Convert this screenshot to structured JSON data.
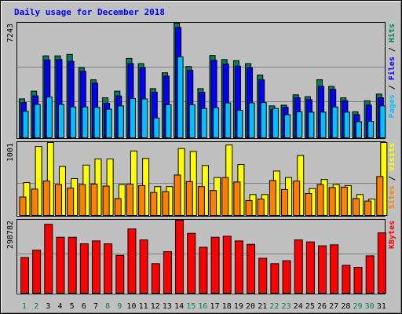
{
  "chart_data": {
    "type": "bar",
    "title": "Daily usage for December 2018",
    "colors": {
      "background": "#c0c0c0",
      "panel": "#c0c0c0",
      "grid": "#808080",
      "hits": "#00805c",
      "files": "#0000ff",
      "pages": "#00c0ff",
      "visits": "#ffff00",
      "sites": "#ff8000",
      "kbytes": "#ff0000",
      "title": "#0000ff",
      "weekday_label": "#0000ff",
      "weekend_label": "#00805c"
    },
    "days": [
      "1",
      "2",
      "3",
      "4",
      "5",
      "6",
      "7",
      "8",
      "9",
      "10",
      "11",
      "12",
      "13",
      "14",
      "15",
      "16",
      "17",
      "18",
      "19",
      "20",
      "21",
      "22",
      "23",
      "24",
      "25",
      "26",
      "27",
      "28",
      "29",
      "30",
      "31"
    ],
    "weekend_days": [
      "1",
      "2",
      "8",
      "9",
      "15",
      "16",
      "22",
      "23",
      "29",
      "30"
    ],
    "panels": [
      {
        "id": "hits-files-pages",
        "ymax_label": "7243",
        "ymax": 7243,
        "legend": [
          {
            "text": "Pages",
            "color": "#00c0ff"
          },
          {
            "text": " / ",
            "color": "#000000"
          },
          {
            "text": "Files",
            "color": "#0000ff"
          },
          {
            "text": " / ",
            "color": "#000000"
          },
          {
            "text": "Hits",
            "color": "#00805c"
          }
        ],
        "series": [
          {
            "name": "Hits",
            "values": [
              2458,
              2947,
              5177,
              5177,
              5270,
              4432,
              3664,
              2528,
              2947,
              5015,
              4688,
              3105,
              4108,
              7243,
              4502,
              3105,
              5201,
              4944,
              4874,
              4688,
              3967,
              2016,
              2062,
              2715,
              2599,
              3664,
              3245,
              2528,
              1644,
              2342,
              2761
            ]
          },
          {
            "name": "Files",
            "values": [
              2225,
              2644,
              4921,
              4944,
              4828,
              4200,
              3455,
              2179,
              2644,
              4688,
              4432,
              2877,
              3897,
              6964,
              4269,
              2877,
              4897,
              4665,
              4525,
              4432,
              3664,
              1784,
              1923,
              2528,
              2412,
              3245,
              3059,
              2342,
              1459,
              2063,
              2528
            ]
          },
          {
            "name": "Pages",
            "values": [
              1669,
              2109,
              2574,
              2109,
              1946,
              1946,
              1923,
              1806,
              2016,
              2481,
              2458,
              1249,
              2087,
              5108,
              2087,
              1853,
              1900,
              2202,
              1737,
              2202,
              2225,
              1853,
              1459,
              1644,
              1621,
              1621,
              1946,
              1621,
              1018,
              1041,
              2016
            ]
          }
        ]
      },
      {
        "id": "visits-sites",
        "ymax_label": "1001",
        "ymax": 1001,
        "legend": [
          {
            "text": "Sites",
            "color": "#ff8000"
          },
          {
            "text": " / ",
            "color": "#000000"
          },
          {
            "text": "Visits",
            "color": "#ffff00"
          }
        ],
        "series": [
          {
            "name": "Visits",
            "values": [
              451,
              946,
              1001,
              672,
              506,
              691,
              775,
              775,
              424,
              884,
              782,
              396,
              396,
              918,
              877,
              685,
              520,
              966,
              699,
              287,
              287,
              609,
              520,
              822,
              369,
              493,
              424,
              410,
              287,
              225,
              1001
            ]
          },
          {
            "name": "Sites",
            "values": [
              253,
              362,
              472,
              424,
              376,
              424,
              431,
              403,
              232,
              431,
              410,
              315,
              328,
              555,
              465,
              396,
              342,
              520,
              459,
              205,
              225,
              479,
              356,
              472,
              301,
              424,
              383,
              389,
              232,
              198,
              534
            ]
          }
        ]
      },
      {
        "id": "kbytes",
        "ymax_label": "298782",
        "ymax": 298782,
        "legend": [
          {
            "text": "KBytes",
            "color": "#ff0000"
          }
        ],
        "series": [
          {
            "name": "KBytes",
            "values": [
              146000,
              176000,
              282000,
              229000,
              229000,
              202000,
              214000,
              202000,
              155000,
              263000,
              218000,
              121000,
              170000,
              298782,
              245000,
              188000,
              229000,
              233000,
              214000,
              200000,
              143000,
              121000,
              133000,
              218000,
              210000,
              194000,
              198000,
              114000,
              106000,
              153000,
              247000
            ]
          }
        ]
      }
    ]
  }
}
